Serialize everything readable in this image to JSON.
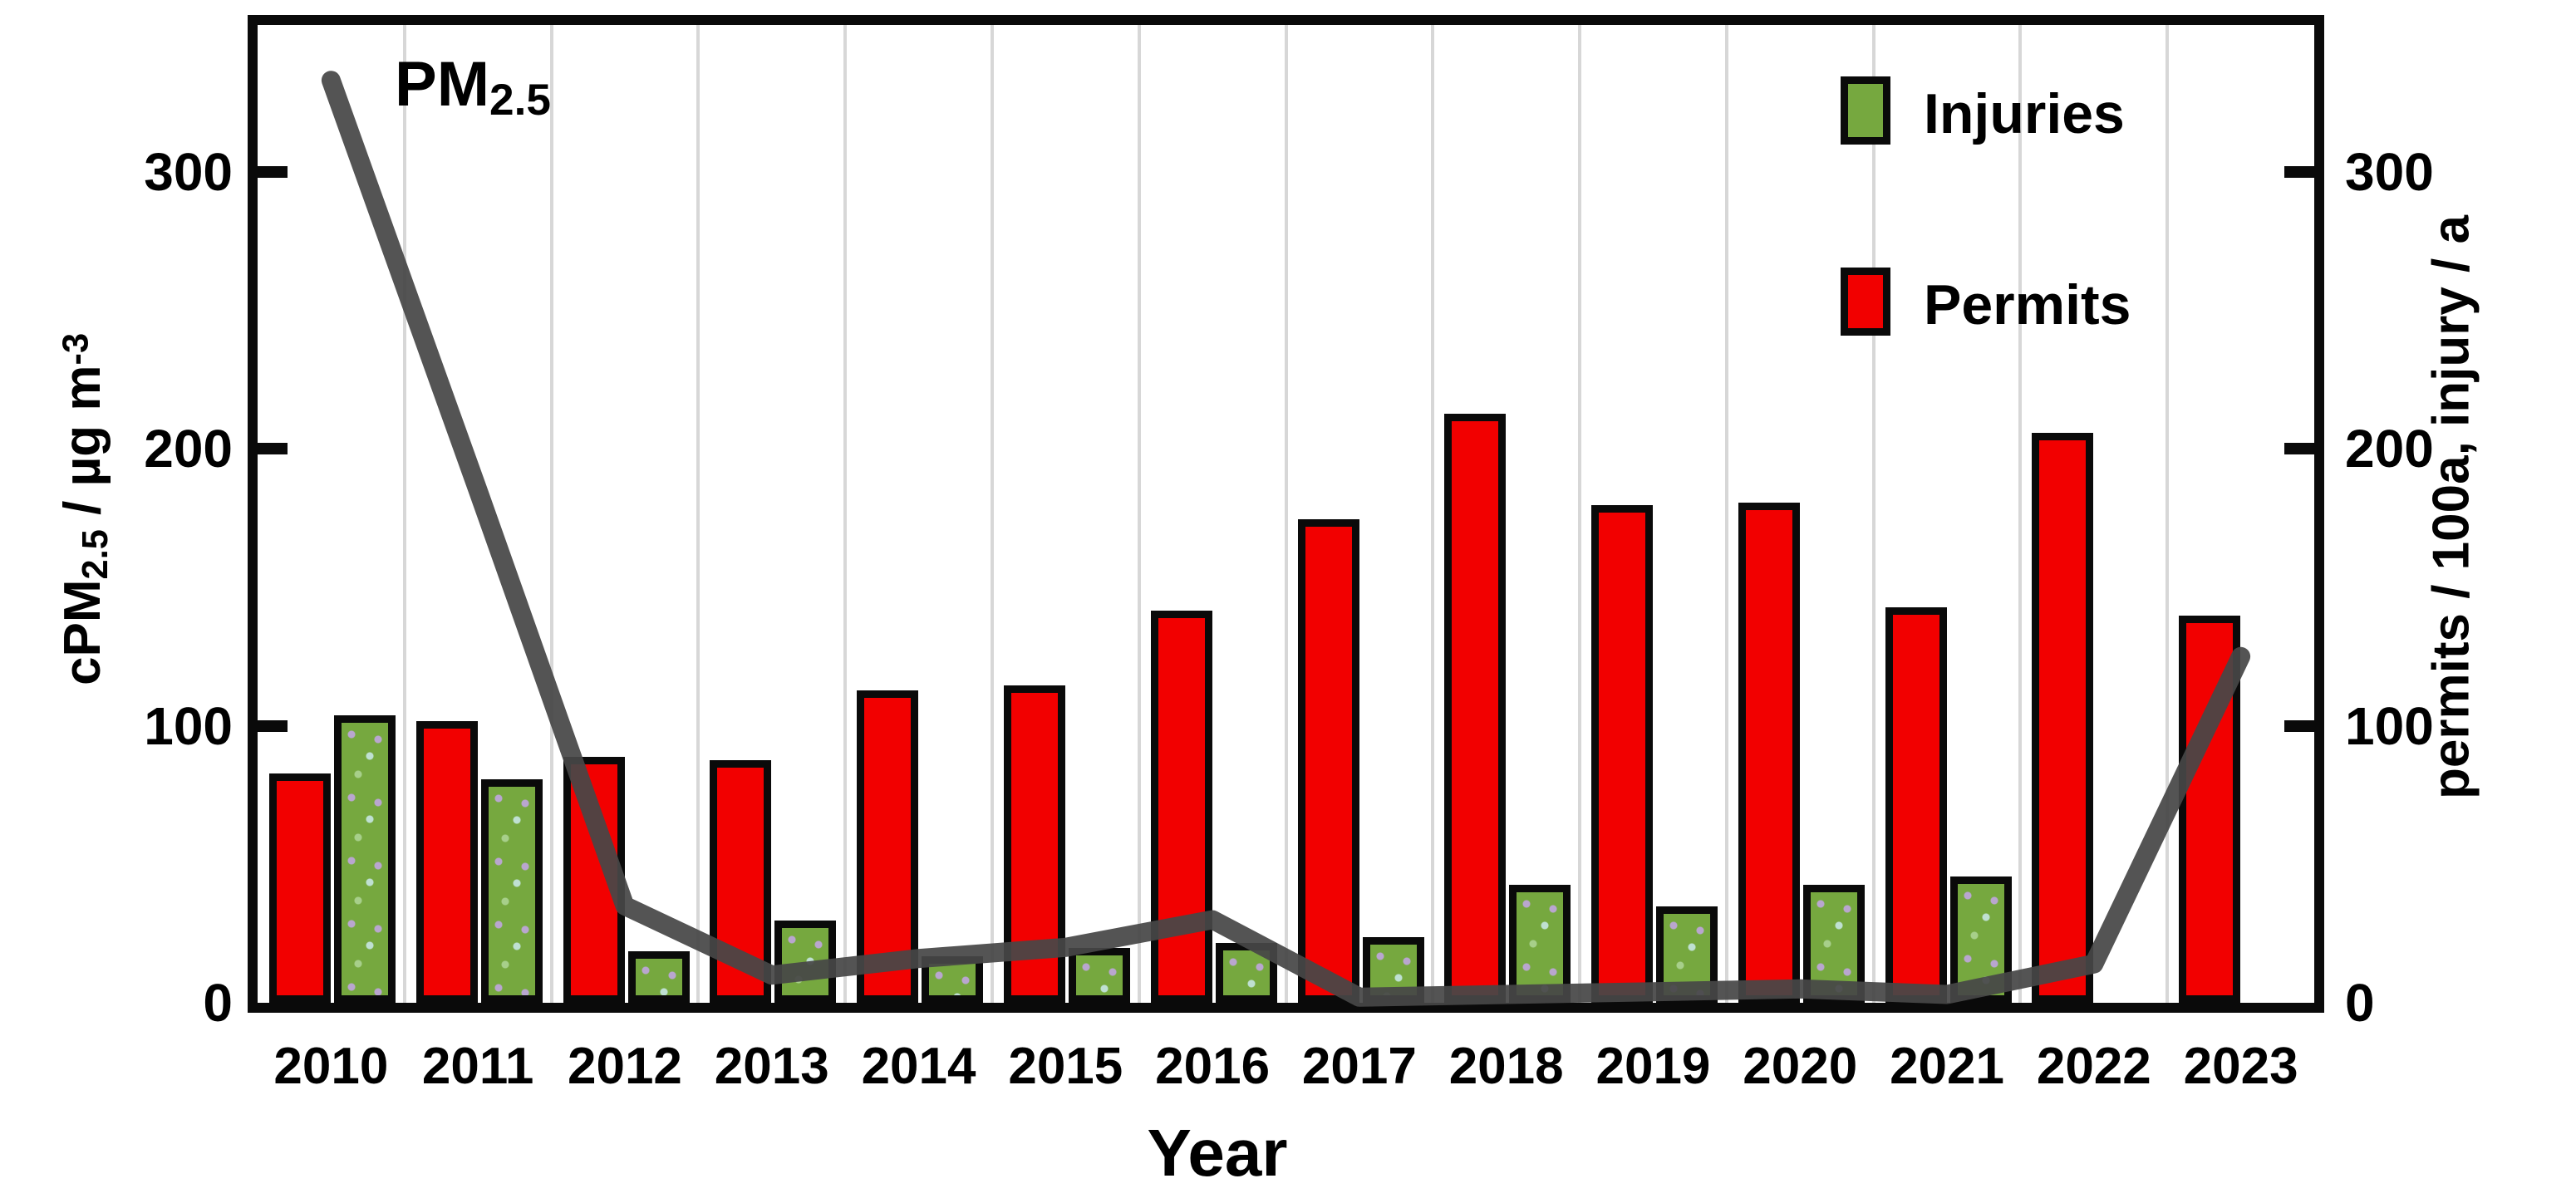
{
  "chart_data": {
    "type": "combo_bar_line",
    "categories": [
      "2010",
      "2011",
      "2012",
      "2013",
      "2014",
      "2015",
      "2016",
      "2017",
      "2018",
      "2019",
      "2020",
      "2021",
      "2022",
      "2023"
    ],
    "series": [
      {
        "name": "Permits",
        "type": "bar",
        "axis": "right",
        "color": "#f20000",
        "values": [
          80,
          99,
          86,
          85,
          110,
          112,
          139,
          172,
          210,
          177,
          178,
          140,
          203,
          137
        ]
      },
      {
        "name": "Injuries",
        "type": "bar",
        "axis": "right",
        "color": "#76a83f",
        "values": [
          101,
          78,
          16,
          27,
          14,
          17,
          19,
          21,
          40,
          32,
          40,
          43,
          null,
          null
        ]
      },
      {
        "name": "PM2.5",
        "type": "line",
        "axis": "left",
        "color": "#474747",
        "values": [
          333,
          185,
          35,
          10,
          16,
          20,
          30,
          2,
          3,
          4,
          5,
          3,
          14,
          125
        ]
      }
    ],
    "xlabel": "Year",
    "ylabel_left": "cPM2.5 / µg m-3",
    "ylabel_right": "permits / 100a, injury / a",
    "ylim": [
      0,
      353
    ],
    "yticks": [
      0,
      100,
      200,
      300
    ],
    "grid": "vertical lines between year groups",
    "legend_position": "top-right inside plot"
  },
  "labels": {
    "x_title": "Year",
    "left_axis": {
      "pre": "cPM",
      "sub": "2.5",
      "mid": " / µg m",
      "sup": "-3"
    },
    "right_axis": "permits / 100a, injury / a",
    "annotation": {
      "pre": "PM",
      "sub": "2.5"
    },
    "legend": {
      "injuries": "Injuries",
      "permits": "Permits"
    }
  },
  "colors": {
    "permits_bar": "#f20000",
    "injuries_bar": "#76a83f",
    "pm_line": "#474747",
    "gridline": "#d7d7d7",
    "frame": "#0a0a0a"
  }
}
